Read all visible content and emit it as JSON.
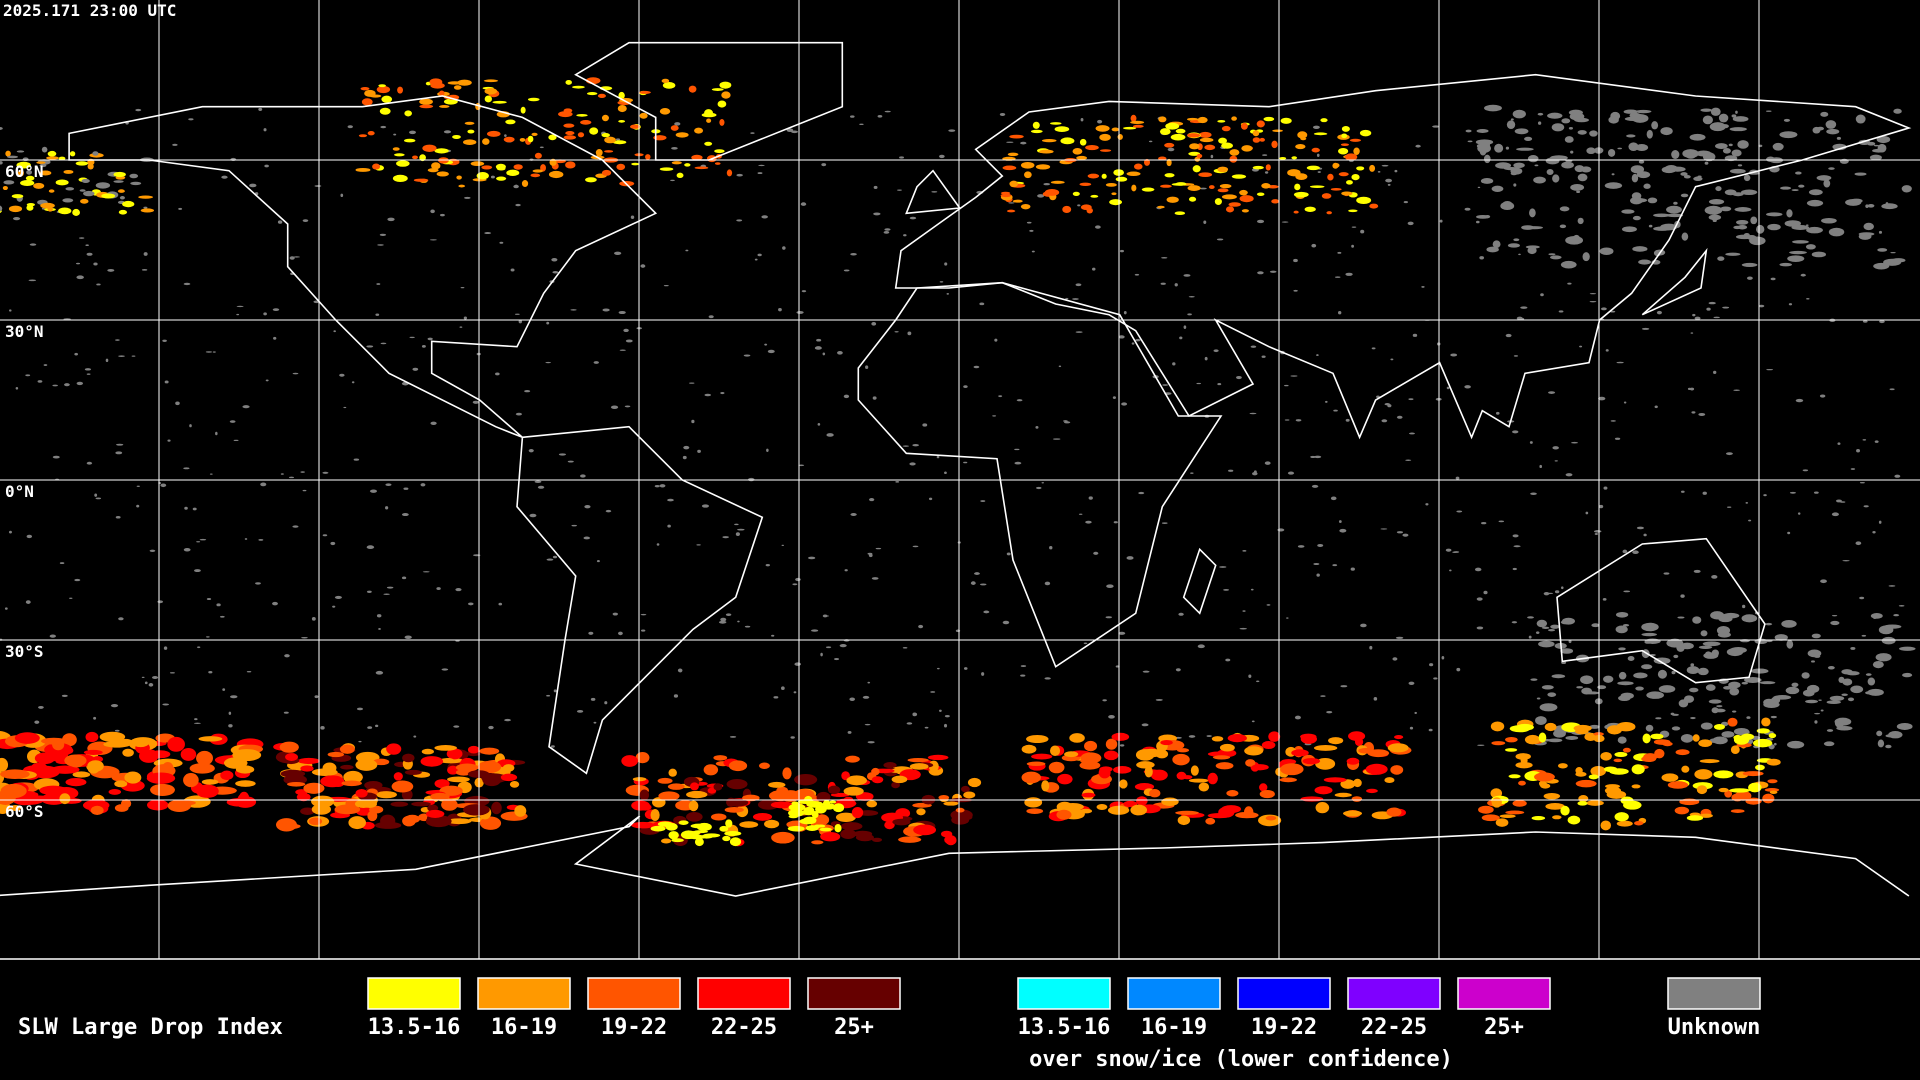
{
  "timestamp": "2025.171 23:00 UTC",
  "latitude_labels": [
    "60°N",
    "30°N",
    "0°N",
    "30°S",
    "60°S"
  ],
  "legend": {
    "title": "SLW Large Drop Index",
    "items": [
      {
        "label": "13.5-16",
        "color": "#ffff00"
      },
      {
        "label": "16-19",
        "color": "#ff9900"
      },
      {
        "label": "19-22",
        "color": "#ff5500"
      },
      {
        "label": "22-25",
        "color": "#ff0000"
      },
      {
        "label": "25+",
        "color": "#660000"
      }
    ],
    "snow_items": [
      {
        "label": "13.5-16",
        "color": "#00ffff"
      },
      {
        "label": "16-19",
        "color": "#0088ff"
      },
      {
        "label": "19-22",
        "color": "#0000ff"
      },
      {
        "label": "22-25",
        "color": "#7f00ff"
      },
      {
        "label": "25+",
        "color": "#cc00cc"
      }
    ],
    "snow_caption": "over snow/ice (lower confidence)",
    "unknown": {
      "label": "Unknown",
      "color": "#808080"
    }
  }
}
